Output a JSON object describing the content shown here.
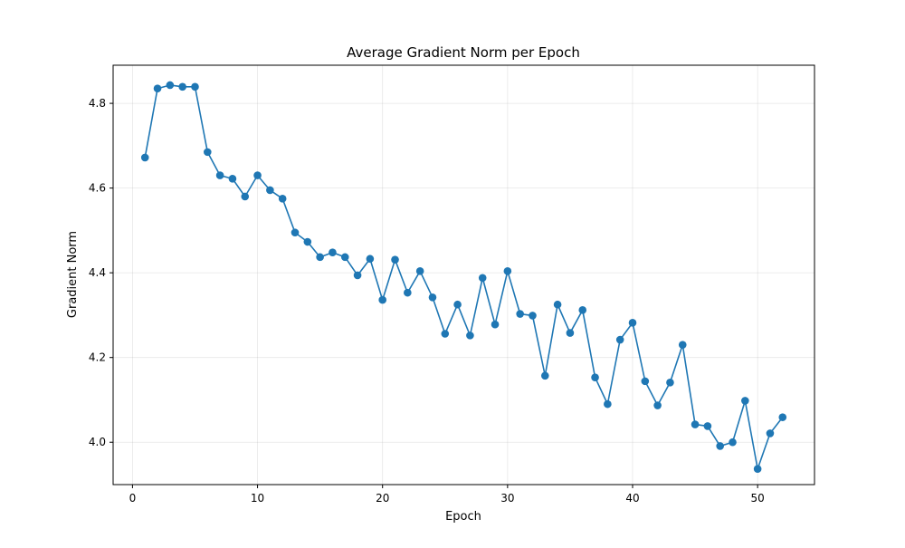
{
  "chart_data": {
    "type": "line",
    "title": "Average Gradient Norm per Epoch",
    "xlabel": "Epoch",
    "ylabel": "Gradient Norm",
    "xlim": [
      -1.55,
      54.55
    ],
    "ylim": [
      3.9,
      4.89
    ],
    "xticks": [
      0,
      10,
      20,
      30,
      40,
      50
    ],
    "yticks": [
      4.0,
      4.2,
      4.4,
      4.6,
      4.8
    ],
    "ytick_labels": [
      "4.0",
      "4.2",
      "4.4",
      "4.6",
      "4.8"
    ],
    "grid": true,
    "line_color": "#1f77b4",
    "marker": "circle",
    "series": [
      {
        "x": [
          1,
          2,
          3,
          4,
          5,
          6,
          7,
          8,
          9,
          10,
          11,
          12,
          13,
          14,
          15,
          16,
          17,
          18,
          19,
          20,
          21,
          22,
          23,
          24,
          25,
          26,
          27,
          28,
          29,
          30,
          31,
          32,
          33,
          34,
          35,
          36,
          37,
          38,
          39,
          40,
          41,
          42,
          43,
          44,
          45,
          46,
          47,
          48,
          49,
          50,
          51,
          52
        ],
        "y": [
          4.672,
          4.835,
          4.843,
          4.839,
          4.839,
          4.685,
          4.63,
          4.622,
          4.58,
          4.63,
          4.595,
          4.575,
          4.495,
          4.473,
          4.437,
          4.448,
          4.437,
          4.394,
          4.433,
          4.336,
          4.431,
          4.353,
          4.404,
          4.342,
          4.256,
          4.325,
          4.252,
          4.388,
          4.278,
          4.404,
          4.303,
          4.299,
          4.157,
          4.325,
          4.258,
          4.312,
          4.153,
          4.09,
          4.242,
          4.282,
          4.144,
          4.087,
          4.141,
          4.23,
          4.042,
          4.038,
          3.991,
          4.0,
          4.098,
          3.937,
          4.021,
          4.059
        ]
      }
    ]
  }
}
